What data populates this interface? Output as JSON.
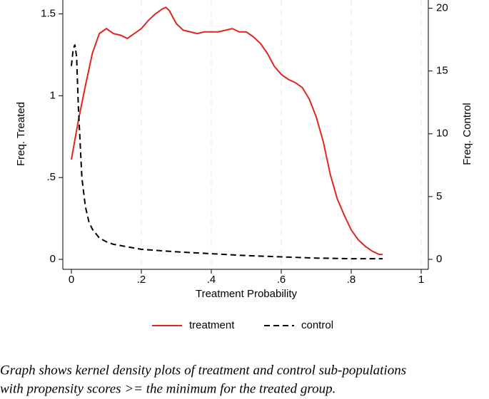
{
  "chart_data": {
    "type": "line",
    "xlabel": "Treatment Probability",
    "ylabel": "Freq. Treated",
    "y2label": "Freq. Control",
    "xlim": [
      0,
      1
    ],
    "xticks": [
      0,
      {
        "value": 0.2,
        "label": ".2"
      },
      {
        "value": 0.4,
        "label": ".4"
      },
      {
        "value": 0.6,
        "label": ".6"
      },
      {
        "value": 0.8,
        "label": ".8"
      },
      1
    ],
    "ylim": [
      0,
      1.55
    ],
    "yticks": [
      0,
      {
        "value": 0.5,
        "label": ".5"
      },
      1,
      1.5
    ],
    "y2lim": [
      0,
      20.2
    ],
    "y2ticks": [
      0,
      5,
      10,
      15,
      20
    ],
    "grid": true,
    "legend": "bottom",
    "series": [
      {
        "name": "treatment",
        "color": "#e3231f",
        "style": "solid",
        "axis": "y",
        "x": [
          0,
          0.02,
          0.04,
          0.06,
          0.08,
          0.1,
          0.12,
          0.14,
          0.16,
          0.18,
          0.2,
          0.22,
          0.24,
          0.26,
          0.27,
          0.28,
          0.3,
          0.32,
          0.34,
          0.36,
          0.38,
          0.4,
          0.42,
          0.44,
          0.46,
          0.48,
          0.5,
          0.52,
          0.54,
          0.56,
          0.58,
          0.6,
          0.62,
          0.64,
          0.66,
          0.68,
          0.7,
          0.72,
          0.74,
          0.76,
          0.78,
          0.8,
          0.82,
          0.84,
          0.86,
          0.88,
          0.89
        ],
        "values": [
          0.61,
          0.85,
          1.06,
          1.26,
          1.38,
          1.41,
          1.38,
          1.37,
          1.35,
          1.38,
          1.41,
          1.46,
          1.5,
          1.53,
          1.54,
          1.52,
          1.44,
          1.4,
          1.39,
          1.38,
          1.39,
          1.39,
          1.39,
          1.4,
          1.41,
          1.39,
          1.39,
          1.36,
          1.32,
          1.26,
          1.18,
          1.13,
          1.1,
          1.08,
          1.05,
          0.98,
          0.87,
          0.72,
          0.52,
          0.37,
          0.27,
          0.18,
          0.12,
          0.08,
          0.05,
          0.03,
          0.03
        ]
      },
      {
        "name": "control",
        "color": "#000000",
        "style": "dashed",
        "axis": "y2",
        "x": [
          0,
          0.005,
          0.01,
          0.015,
          0.02,
          0.025,
          0.03,
          0.04,
          0.05,
          0.06,
          0.08,
          0.1,
          0.12,
          0.16,
          0.2,
          0.3,
          0.4,
          0.5,
          0.6,
          0.7,
          0.8,
          0.89
        ],
        "values": [
          15.4,
          16.7,
          17.1,
          16.1,
          12.1,
          9.3,
          6.5,
          4.2,
          3.0,
          2.4,
          1.7,
          1.4,
          1.2,
          1.0,
          0.8,
          0.6,
          0.45,
          0.3,
          0.2,
          0.1,
          0.05,
          0.05
        ]
      }
    ],
    "caption": [
      "Graph shows kernel density plots of treatment and control sub-populations",
      "with propensity scores >= the minimum for the treated group."
    ]
  }
}
